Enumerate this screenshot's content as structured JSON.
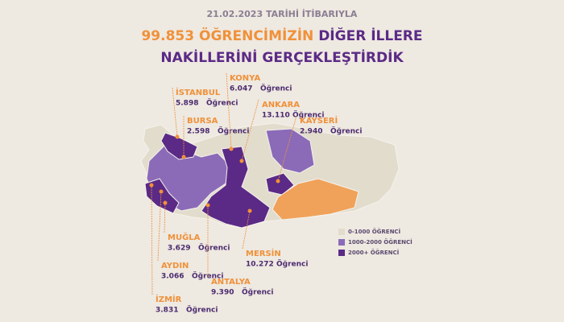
{
  "header": {
    "date_line": "21.02.2023 TARİHİ İTİBARIYLA",
    "total": "99.853",
    "highlight": "ÖĞRENCİMİZİN",
    "rest": "DİĞER İLLERE",
    "line3": "NAKİLLERİNİ GERÇEKLEŞTİRDİK"
  },
  "cities": [
    {
      "name": "İSTANBUL",
      "count": "5.898",
      "unit": "Öğrenci"
    },
    {
      "name": "BURSA",
      "count": "2.598",
      "unit": "Öğrenci"
    },
    {
      "name": "KONYA",
      "count": "6.047",
      "unit": "Öğrenci"
    },
    {
      "name": "ANKARA",
      "count": "13.110",
      "unit": "Öğrenci"
    },
    {
      "name": "KAYSERİ",
      "count": "2.940",
      "unit": "Öğrenci"
    },
    {
      "name": "MUĞLA",
      "count": "3.629",
      "unit": "Öğrenci"
    },
    {
      "name": "AYDIN",
      "count": "3.066",
      "unit": "Öğrenci"
    },
    {
      "name": "İZMİR",
      "count": "3.831",
      "unit": "Öğrenci"
    },
    {
      "name": "ANTALYA",
      "count": "9.390",
      "unit": "Öğrenci"
    },
    {
      "name": "MERSİN",
      "count": "10.272",
      "unit": "Öğrenci"
    }
  ],
  "legend": [
    {
      "label": "0-1000 ÖĞRENCİ",
      "color": "#e2dccd"
    },
    {
      "label": "1000-2000 ÖĞRENCİ",
      "color": "#8b6bb8"
    },
    {
      "label": "2000+ ÖĞRENCİ",
      "color": "#5b2a86"
    }
  ]
}
